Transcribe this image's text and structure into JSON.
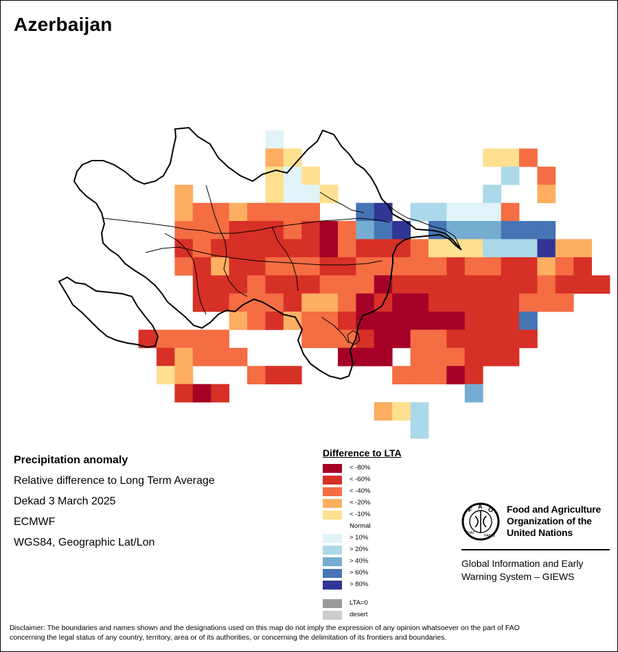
{
  "map_title": "Azerbaijan",
  "info": {
    "heading": "Precipitation anomaly",
    "line1": "Relative difference to Long Term Average",
    "line2": "Dekad 3 March 2025",
    "line3": "ECMWF",
    "line4": "WGS84, Geographic Lat/Lon"
  },
  "legend": {
    "title": "Difference to LTA",
    "classes": [
      {
        "label": "< -80%",
        "color": "#a50026"
      },
      {
        "label": "< -60%",
        "color": "#d73027"
      },
      {
        "label": "< -40%",
        "color": "#f46d43"
      },
      {
        "label": "< -20%",
        "color": "#fdae61"
      },
      {
        "label": "< -10%",
        "color": "#fee090"
      },
      {
        "label": "Normal",
        "color": "#ffffff"
      },
      {
        "label": "> 10%",
        "color": "#e0f3f8"
      },
      {
        "label": "> 20%",
        "color": "#abd9e9"
      },
      {
        "label": "> 40%",
        "color": "#74add1"
      },
      {
        "label": "> 60%",
        "color": "#4575b4"
      },
      {
        "label": "> 80%",
        "color": "#313695"
      }
    ],
    "extra": [
      {
        "label": "LTA=0",
        "color": "#9a9a9a"
      },
      {
        "label": "desert",
        "color": "#cccccc"
      }
    ]
  },
  "fao": {
    "name_line1": "Food and Agriculture",
    "name_line2": "Organization of the",
    "name_line3": "United Nations",
    "logo_text": "FAO",
    "logo_ring_text": "FIAT PANIS",
    "giews_line1": "Global Information and Early",
    "giews_line2": "Warning System – GIEWS"
  },
  "disclaimer_line1": "Disclaimer: The boundaries and names shown and the designations used on this map do not imply the expression of any opinion whatsoever on the part of FAO",
  "disclaimer_line2": "concerning the legal status of any country, territory, area or of its authorities, or concerning the delimitation of its frontiers and boundaries.",
  "grid": {
    "rows": [
      {
        "r": 0,
        "c0": 11,
        "classes": [
          6
        ]
      },
      {
        "r": 1,
        "c0": 11,
        "classes": [
          3,
          4,
          -1,
          -1,
          -1,
          -1,
          -1,
          -1,
          -1,
          -1,
          -1,
          -1,
          4,
          4,
          2
        ]
      },
      {
        "r": 2,
        "c0": 11,
        "classes": [
          4,
          6,
          4,
          -1,
          -1,
          -1,
          -1,
          -1,
          -1,
          -1,
          -1,
          -1,
          -1,
          7,
          -1,
          2
        ]
      },
      {
        "r": 3,
        "c0": 6,
        "classes": [
          3,
          -1,
          -1,
          -1,
          -1,
          4,
          6,
          6,
          4,
          -1,
          -1,
          -1,
          -1,
          -1,
          5,
          5,
          5,
          7,
          5,
          5,
          3
        ]
      },
      {
        "r": 4,
        "c0": 6,
        "classes": [
          3,
          2,
          2,
          3,
          2,
          2,
          2,
          2,
          5,
          5,
          9,
          10,
          5,
          7,
          7,
          6,
          6,
          6,
          2
        ]
      },
      {
        "r": 5,
        "c0": 6,
        "classes": [
          2,
          2,
          2,
          1,
          1,
          1,
          2,
          1,
          0,
          2,
          8,
          9,
          10,
          5,
          9,
          8,
          8,
          8,
          9,
          9,
          9
        ]
      },
      {
        "r": 6,
        "c0": 6,
        "classes": [
          1,
          2,
          1,
          1,
          1,
          1,
          1,
          1,
          0,
          2,
          1,
          1,
          1,
          2,
          4,
          4,
          4,
          7,
          7,
          7,
          10,
          3,
          3
        ]
      },
      {
        "r": 7,
        "c0": 6,
        "classes": [
          2,
          1,
          3,
          1,
          1,
          2,
          2,
          2,
          1,
          1,
          2,
          2,
          2,
          2,
          2,
          1,
          2,
          2,
          1,
          1,
          3,
          2,
          1
        ]
      },
      {
        "r": 8,
        "c0": 7,
        "classes": [
          1,
          1,
          1,
          2,
          1,
          1,
          1,
          2,
          2,
          2,
          0,
          1,
          1,
          1,
          1,
          1,
          1,
          1,
          1,
          2,
          1,
          1,
          1
        ]
      },
      {
        "r": 9,
        "c0": 7,
        "classes": [
          1,
          1,
          2,
          2,
          2,
          1,
          3,
          3,
          2,
          0,
          1,
          0,
          0,
          1,
          1,
          1,
          1,
          1,
          2,
          2,
          2
        ]
      },
      {
        "r": 10,
        "c0": 9,
        "classes": [
          3,
          2,
          1,
          3,
          2,
          2,
          1,
          0,
          0,
          0,
          0,
          0,
          0,
          1,
          1,
          1,
          9
        ]
      },
      {
        "r": 11,
        "c0": 4,
        "classes": [
          1,
          2,
          2,
          2,
          2,
          -1,
          -1,
          -1,
          -1,
          2,
          2,
          2,
          1,
          0,
          0,
          2,
          2,
          1,
          1,
          1,
          1,
          1
        ]
      },
      {
        "r": 12,
        "c0": 5,
        "classes": [
          1,
          3,
          2,
          2,
          2,
          -1,
          -1,
          -1,
          -1,
          -1,
          0,
          0,
          0,
          -1,
          2,
          2,
          2,
          1,
          1,
          1
        ]
      },
      {
        "r": 13,
        "c0": 5,
        "classes": [
          4,
          3,
          -1,
          -1,
          -1,
          2,
          1,
          1,
          -1,
          -1,
          -1,
          -1,
          -1,
          2,
          2,
          2,
          0,
          1,
          -1
        ]
      },
      {
        "r": 14,
        "c0": 6,
        "classes": [
          1,
          0,
          1,
          -1,
          -1,
          -1,
          -1,
          -1,
          -1,
          -1,
          -1,
          -1,
          -1,
          -1,
          -1,
          -1,
          8
        ]
      },
      {
        "r": 15,
        "c0": 17,
        "classes": [
          3,
          4,
          7
        ]
      },
      {
        "r": 16,
        "c0": 19,
        "classes": [
          7
        ]
      }
    ]
  }
}
